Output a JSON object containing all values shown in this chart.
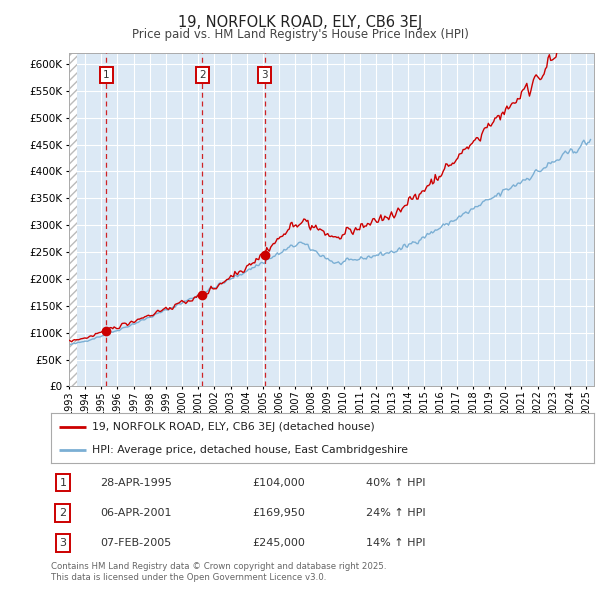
{
  "title": "19, NORFOLK ROAD, ELY, CB6 3EJ",
  "subtitle": "Price paid vs. HM Land Registry's House Price Index (HPI)",
  "legend_line1": "19, NORFOLK ROAD, ELY, CB6 3EJ (detached house)",
  "legend_line2": "HPI: Average price, detached house, East Cambridgeshire",
  "footnote": "Contains HM Land Registry data © Crown copyright and database right 2025.\nThis data is licensed under the Open Government Licence v3.0.",
  "price_paid": [
    {
      "date": "1995-04-28",
      "price": 104000,
      "label": "1"
    },
    {
      "date": "2001-04-06",
      "price": 169950,
      "label": "2"
    },
    {
      "date": "2005-02-07",
      "price": 245000,
      "label": "3"
    }
  ],
  "transactions": [
    {
      "num": 1,
      "date": "28-APR-1995",
      "price": "£104,000",
      "hpi": "40% ↑ HPI"
    },
    {
      "num": 2,
      "date": "06-APR-2001",
      "price": "£169,950",
      "hpi": "24% ↑ HPI"
    },
    {
      "num": 3,
      "date": "07-FEB-2005",
      "price": "£245,000",
      "hpi": "14% ↑ HPI"
    }
  ],
  "red_color": "#cc0000",
  "blue_color": "#7bafd4",
  "fig_bg": "#ffffff",
  "plot_bg": "#dce9f5",
  "grid_color": "#ffffff",
  "vline_color": "#cc0000",
  "box_color": "#cc0000",
  "hatch_color": "#cccccc",
  "ylim": [
    0,
    620000
  ],
  "yticks": [
    0,
    50000,
    100000,
    150000,
    200000,
    250000,
    300000,
    350000,
    400000,
    450000,
    500000,
    550000,
    600000
  ],
  "xstart_year": 1993,
  "xend_year": 2025
}
